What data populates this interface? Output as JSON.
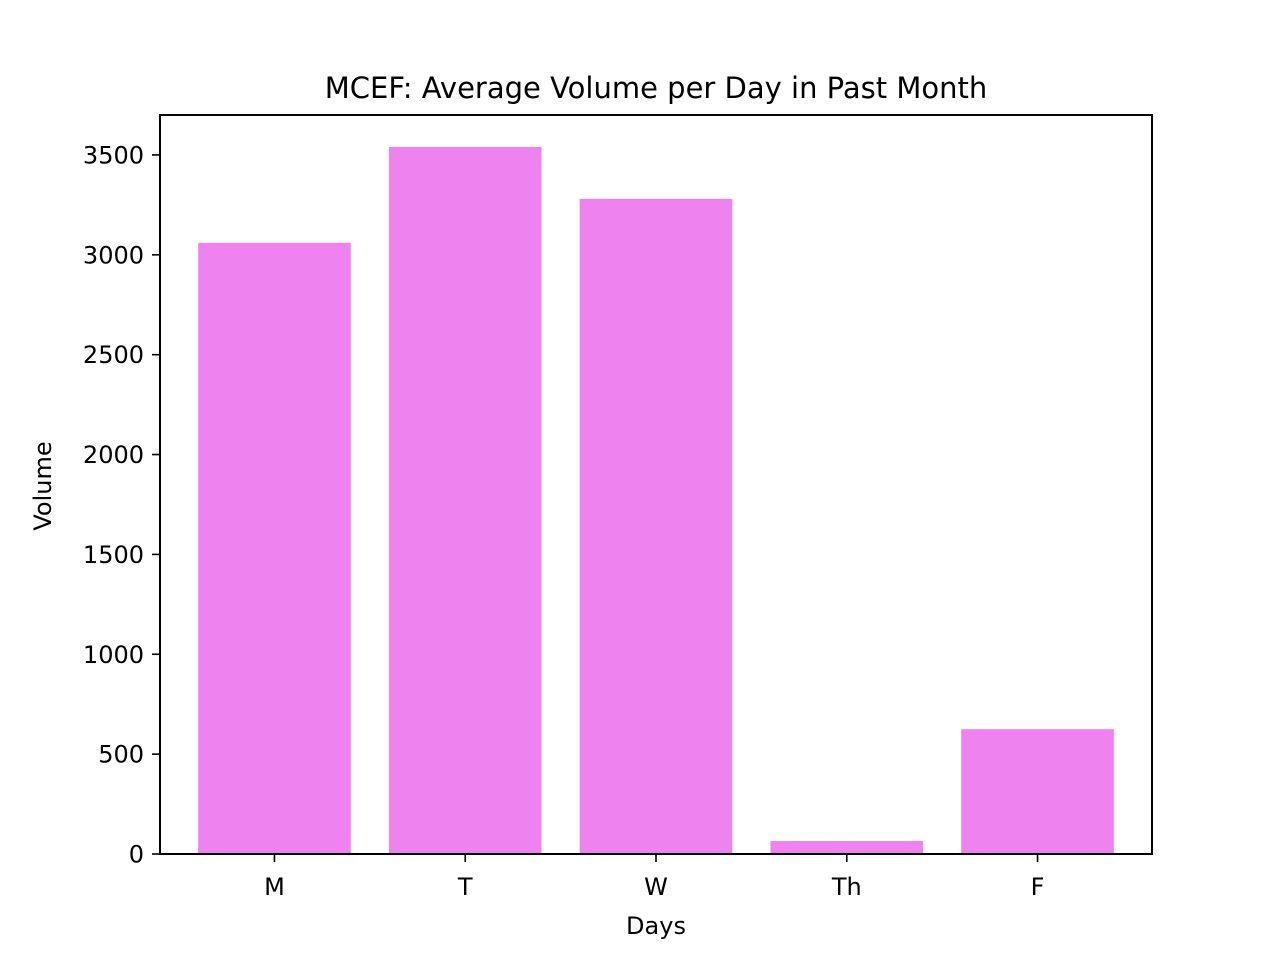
{
  "chart_data": {
    "type": "bar",
    "title": "MCEF: Average Volume per Day in Past Month",
    "xlabel": "Days",
    "ylabel": "Volume",
    "categories": [
      "M",
      "T",
      "W",
      "Th",
      "F"
    ],
    "values": [
      3060,
      3540,
      3280,
      65,
      625
    ],
    "ylim": [
      0,
      3700
    ],
    "yticks": [
      0,
      500,
      1000,
      1500,
      2000,
      2500,
      3000,
      3500
    ],
    "bar_color": "#ee82ee",
    "grid": false,
    "legend": "none"
  }
}
